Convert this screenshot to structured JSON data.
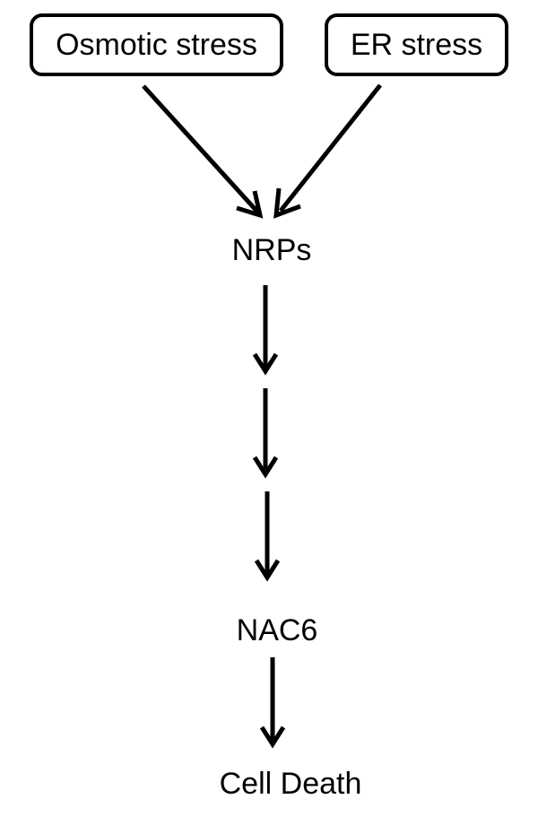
{
  "diagram": {
    "title": "",
    "nodes": {
      "osmotic_stress": "Osmotic stress",
      "er_stress": "ER stress",
      "nrps": "NRPs",
      "nac6": "NAC6",
      "cell_death": "Cell Death"
    },
    "edges": [
      {
        "from": "Osmotic stress",
        "to": "NRPs"
      },
      {
        "from": "ER stress",
        "to": "NRPs"
      },
      {
        "from": "NRPs",
        "to": "NAC6",
        "steps": 3
      },
      {
        "from": "NAC6",
        "to": "Cell Death"
      }
    ],
    "colors": {
      "stroke": "#000000",
      "background": "#ffffff"
    }
  }
}
